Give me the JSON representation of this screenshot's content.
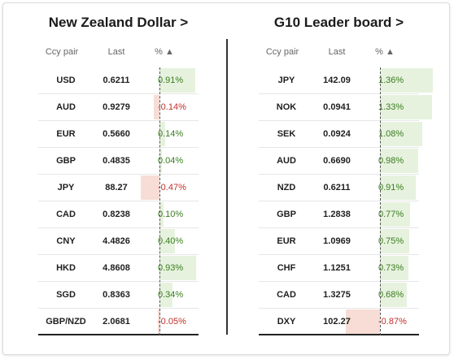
{
  "left_panel": {
    "title": "New Zealand Dollar >",
    "headers": {
      "pair": "Ccy pair",
      "last": "Last",
      "pct": "% ▲"
    },
    "rows": [
      {
        "pair": "USD",
        "last": "0.6211",
        "pct": "0.91%",
        "value": 0.91
      },
      {
        "pair": "AUD",
        "last": "0.9279",
        "pct": "-0.14%",
        "value": -0.14
      },
      {
        "pair": "EUR",
        "last": "0.5660",
        "pct": "0.14%",
        "value": 0.14
      },
      {
        "pair": "GBP",
        "last": "0.4835",
        "pct": "0.04%",
        "value": 0.04
      },
      {
        "pair": "JPY",
        "last": "88.27",
        "pct": "-0.47%",
        "value": -0.47
      },
      {
        "pair": "CAD",
        "last": "0.8238",
        "pct": "0.10%",
        "value": 0.1
      },
      {
        "pair": "CNY",
        "last": "4.4826",
        "pct": "0.40%",
        "value": 0.4
      },
      {
        "pair": "HKD",
        "last": "4.8608",
        "pct": "0.93%",
        "value": 0.93
      },
      {
        "pair": "SGD",
        "last": "0.8363",
        "pct": "0.34%",
        "value": 0.34
      },
      {
        "pair": "GBP/NZD",
        "last": "2.0681",
        "pct": "-0.05%",
        "value": -0.05
      }
    ]
  },
  "right_panel": {
    "title": "G10 Leader board >",
    "headers": {
      "pair": "Ccy pair",
      "last": "Last",
      "pct": "% ▲"
    },
    "rows": [
      {
        "pair": "JPY",
        "last": "142.09",
        "pct": "1.36%",
        "value": 1.36
      },
      {
        "pair": "NOK",
        "last": "0.0941",
        "pct": "1.33%",
        "value": 1.33
      },
      {
        "pair": "SEK",
        "last": "0.0924",
        "pct": "1.08%",
        "value": 1.08
      },
      {
        "pair": "AUD",
        "last": "0.6690",
        "pct": "0.98%",
        "value": 0.98
      },
      {
        "pair": "NZD",
        "last": "0.6211",
        "pct": "0.91%",
        "value": 0.91
      },
      {
        "pair": "GBP",
        "last": "1.2838",
        "pct": "0.77%",
        "value": 0.77
      },
      {
        "pair": "EUR",
        "last": "1.0969",
        "pct": "0.75%",
        "value": 0.75
      },
      {
        "pair": "CHF",
        "last": "1.1251",
        "pct": "0.73%",
        "value": 0.73
      },
      {
        "pair": "CAD",
        "last": "1.3275",
        "pct": "0.68%",
        "value": 0.68
      },
      {
        "pair": "DXY",
        "last": "102.27",
        "pct": "-0.87%",
        "value": -0.87
      }
    ]
  },
  "colors": {
    "positive_text": "#3a7d1e",
    "negative_text": "#c0302a",
    "positive_bar": "#e6f2de",
    "negative_bar": "#f7ddd5"
  }
}
